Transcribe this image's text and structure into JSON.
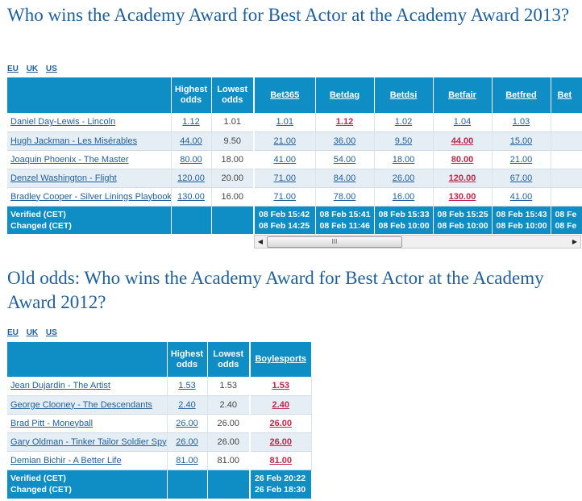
{
  "section1": {
    "title": "Who wins the Academy Award for Best Actor at the Academy Award 2013?",
    "units": [
      "EU",
      "UK",
      "US"
    ],
    "headers": {
      "highest": "Highest odds",
      "lowest": "Lowest odds"
    },
    "bookmakers": [
      "Bet365",
      "Betdag",
      "Betdsi",
      "Betfair",
      "Betfred",
      "Bet"
    ],
    "rows": [
      {
        "name": "Daniel Day-Lewis - Lincoln",
        "highest": "1.12",
        "lowest": "1.01",
        "odds": [
          "1.01",
          "1.12",
          "1.02",
          "1.04",
          "1.03",
          ""
        ],
        "hi_index": 1
      },
      {
        "name": "Hugh Jackman - Les Misérables",
        "highest": "44.00",
        "lowest": "9.50",
        "odds": [
          "21.00",
          "36.00",
          "9.50",
          "44.00",
          "15.00",
          ""
        ],
        "hi_index": 3
      },
      {
        "name": "Joaquin Phoenix - The Master",
        "highest": "80.00",
        "lowest": "18.00",
        "odds": [
          "41.00",
          "54.00",
          "18.00",
          "80.00",
          "21.00",
          ""
        ],
        "hi_index": 3
      },
      {
        "name": "Denzel Washington - Flight",
        "highest": "120.00",
        "lowest": "20.00",
        "odds": [
          "71.00",
          "84.00",
          "26.00",
          "120.00",
          "67.00",
          ""
        ],
        "hi_index": 3
      },
      {
        "name": "Bradley Cooper - Silver Linings Playbook",
        "highest": "130.00",
        "lowest": "16.00",
        "odds": [
          "71.00",
          "78.00",
          "16.00",
          "130.00",
          "41.00",
          ""
        ],
        "hi_index": 3
      }
    ],
    "footer": {
      "verified_label": "Verified (CET)",
      "changed_label": "Changed (CET)",
      "verified": [
        "08 Feb 15:42",
        "08 Feb 15:41",
        "08 Feb 15:33",
        "08 Feb 15:25",
        "08 Feb 15:43",
        "08 Fe"
      ],
      "changed": [
        "08 Feb 14:25",
        "08 Feb 11:46",
        "08 Feb 10:00",
        "08 Feb 10:00",
        "08 Feb 10:00",
        "08 Fe"
      ]
    },
    "scrollbar": {
      "left_arrow": "◀",
      "right_arrow": "▶",
      "thumb_grip": "III"
    }
  },
  "section2": {
    "title": "Old odds: Who wins the Academy Award for Best Actor at the Academy Award 2012?",
    "units": [
      "EU",
      "UK",
      "US"
    ],
    "headers": {
      "highest": "Highest odds",
      "lowest": "Lowest odds"
    },
    "bookmakers": [
      "Boylesports"
    ],
    "rows": [
      {
        "name": "Jean Dujardin - The Artist",
        "highest": "1.53",
        "lowest": "1.53",
        "odds": [
          "1.53"
        ]
      },
      {
        "name": "George Clooney - The Descendants",
        "highest": "2.40",
        "lowest": "2.40",
        "odds": [
          "2.40"
        ]
      },
      {
        "name": "Brad Pitt - Moneyball",
        "highest": "26.00",
        "lowest": "26.00",
        "odds": [
          "26.00"
        ]
      },
      {
        "name": "Gary Oldman - Tinker Tailor Soldier Spy",
        "highest": "26.00",
        "lowest": "26.00",
        "odds": [
          "26.00"
        ]
      },
      {
        "name": "Demian Bichir - A Better Life",
        "highest": "81.00",
        "lowest": "81.00",
        "odds": [
          "81.00"
        ]
      }
    ],
    "footer": {
      "verified_label": "Verified (CET)",
      "changed_label": "Changed (CET)",
      "verified": [
        "26 Feb 20:22"
      ],
      "changed": [
        "26 Feb 18:30"
      ]
    }
  }
}
